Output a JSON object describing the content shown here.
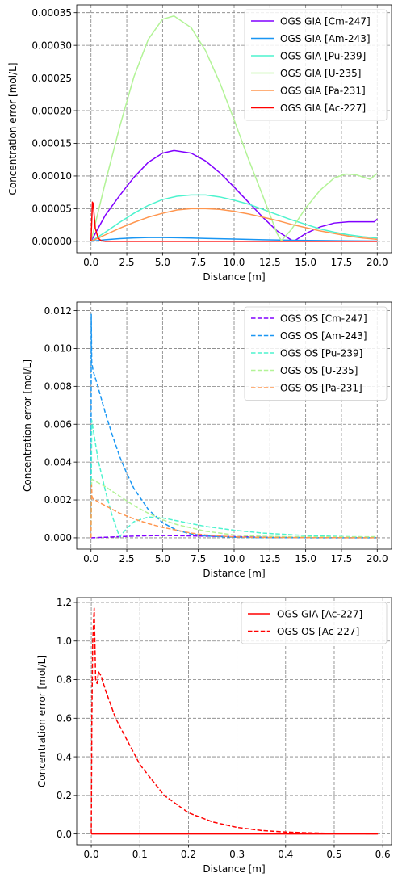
{
  "chart_data": [
    {
      "type": "line",
      "xlabel": "Distance [m]",
      "ylabel": "Concentration error [mol/L]",
      "xlim": [
        -1.0,
        21.0
      ],
      "ylim": [
        -1.75e-05,
        0.000362
      ],
      "xticks": [
        0,
        2.5,
        5,
        7.5,
        10,
        12.5,
        15,
        17.5,
        20
      ],
      "xtick_labels": [
        "0.0",
        "2.5",
        "5.0",
        "7.5",
        "10.0",
        "12.5",
        "15.0",
        "17.5",
        "20.0"
      ],
      "yticks": [
        0,
        5e-05,
        0.0001,
        0.00015,
        0.0002,
        0.00025,
        0.0003,
        0.00035
      ],
      "ytick_labels": [
        "0.00000",
        "0.00005",
        "0.00010",
        "0.00015",
        "0.00020",
        "0.00025",
        "0.00030",
        "0.00035"
      ],
      "grid": true,
      "legend_position": "upper-right",
      "series": [
        {
          "name": "OGS GIA [Cm-247]",
          "color": "#8000ff",
          "style": "solid",
          "x": [
            0,
            1,
            2,
            3,
            4,
            5,
            5.8,
            7,
            8,
            9,
            10,
            11,
            12,
            13,
            14,
            14.2,
            15,
            16,
            17,
            18,
            19,
            19.8,
            20
          ],
          "y": [
            0,
            4e-05,
            7e-05,
            9.8e-05,
            0.000121,
            0.000135,
            0.000139,
            0.000135,
            0.000123,
            0.000105,
            8.3e-05,
            6e-05,
            3.7e-05,
            1.6e-05,
            2e-06,
            5e-07,
            1.2e-05,
            2.2e-05,
            2.8e-05,
            3e-05,
            3e-05,
            3e-05,
            3.4e-05
          ]
        },
        {
          "name": "OGS GIA [Am-243]",
          "color": "#1996f3",
          "style": "solid",
          "x": [
            0,
            1,
            2,
            3,
            4,
            5,
            6,
            7,
            8,
            10,
            12,
            14,
            16,
            18,
            20
          ],
          "y": [
            0,
            2.5e-06,
            4.2e-06,
            5.2e-06,
            5.8e-06,
            5.8e-06,
            5.5e-06,
            5e-06,
            4.5e-06,
            3.5e-06,
            2.5e-06,
            1.7e-06,
            1.2e-06,
            8e-07,
            5e-07
          ]
        },
        {
          "name": "OGS GIA [Pu-239]",
          "color": "#4df3ce",
          "style": "solid",
          "x": [
            0,
            1,
            2,
            3,
            4,
            5,
            6,
            7,
            7.5,
            8,
            9,
            10,
            11,
            12,
            13,
            14,
            15,
            16,
            17,
            18,
            19,
            20
          ],
          "y": [
            0,
            1.4e-05,
            2.9e-05,
            4.3e-05,
            5.5e-05,
            6.4e-05,
            6.9e-05,
            7.1e-05,
            7.1e-05,
            7.1e-05,
            6.8e-05,
            6.3e-05,
            5.7e-05,
            4.9e-05,
            4.1e-05,
            3.3e-05,
            2.6e-05,
            1.9e-05,
            1.4e-05,
            1e-05,
            7e-06,
            5e-06
          ]
        },
        {
          "name": "OGS GIA [U-235]",
          "color": "#b2f396",
          "style": "solid",
          "x": [
            0,
            1,
            2,
            3,
            4,
            5,
            5.8,
            7,
            8,
            9,
            10,
            11,
            12,
            13,
            13.3,
            14,
            15,
            16,
            17,
            17.8,
            18.5,
            19.5,
            20
          ],
          "y": [
            0,
            9e-05,
            0.000175,
            0.000252,
            0.000309,
            0.00034,
            0.000345,
            0.000327,
            0.000292,
            0.000243,
            0.000186,
            0.000126,
            7e-05,
            1.2e-05,
            1e-06,
            1.8e-05,
            5.1e-05,
            7.8e-05,
            9.7e-05,
            0.000103,
            0.000102,
            9.5e-05,
            0.000104
          ]
        },
        {
          "name": "OGS GIA [Pa-231]",
          "color": "#ff964f",
          "style": "solid",
          "x": [
            0,
            1,
            2,
            3,
            4,
            5,
            6,
            7,
            8,
            9,
            10,
            11,
            12,
            13,
            14,
            15,
            16,
            17,
            18,
            19,
            20
          ],
          "y": [
            0,
            1e-05,
            2e-05,
            2.9e-05,
            3.7e-05,
            4.3e-05,
            4.8e-05,
            5e-05,
            5e-05,
            4.9e-05,
            4.6e-05,
            4.2e-05,
            3.7e-05,
            3.2e-05,
            2.6e-05,
            2.1e-05,
            1.6e-05,
            1.2e-05,
            8e-06,
            5e-06,
            3e-06
          ]
        },
        {
          "name": "OGS GIA [Ac-227]",
          "color": "#ff0000",
          "style": "solid",
          "x": [
            0,
            0.1,
            0.15,
            0.3,
            0.5,
            0.7,
            1,
            2,
            5,
            10,
            15,
            20
          ],
          "y": [
            0,
            6e-05,
            5.8e-05,
            2e-05,
            5e-06,
            1e-06,
            0,
            0,
            0,
            0,
            0,
            0
          ]
        }
      ]
    },
    {
      "type": "line",
      "xlabel": "Distance [m]",
      "ylabel": "Concentration error [mol/L]",
      "xlim": [
        -1.0,
        21.0
      ],
      "ylim": [
        -0.0006,
        0.01245
      ],
      "xticks": [
        0,
        2.5,
        5,
        7.5,
        10,
        12.5,
        15,
        17.5,
        20
      ],
      "xtick_labels": [
        "0.0",
        "2.5",
        "5.0",
        "7.5",
        "10.0",
        "12.5",
        "15.0",
        "17.5",
        "20.0"
      ],
      "yticks": [
        0,
        0.002,
        0.004,
        0.006,
        0.008,
        0.01,
        0.012
      ],
      "ytick_labels": [
        "0.000",
        "0.002",
        "0.004",
        "0.006",
        "0.008",
        "0.010",
        "0.012"
      ],
      "grid": true,
      "legend_position": "upper-right",
      "series": [
        {
          "name": "OGS OS [Cm-247]",
          "color": "#8000ff",
          "style": "dashed",
          "x": [
            0,
            1,
            2,
            3,
            4,
            5,
            6,
            7,
            8,
            10,
            12,
            14,
            16,
            18,
            20
          ],
          "y": [
            0,
            3e-05,
            6e-05,
            9e-05,
            0.00011,
            0.00012,
            0.000115,
            0.0001,
            9e-05,
            6e-05,
            4e-05,
            2e-05,
            1e-05,
            1e-05,
            1e-05
          ]
        },
        {
          "name": "OGS OS [Am-243]",
          "color": "#1996f3",
          "style": "dashed",
          "x": [
            0,
            0.02,
            0.05,
            0.15,
            0.4,
            1,
            1.5,
            2,
            2.5,
            3,
            4,
            5,
            6,
            7,
            8,
            10,
            12,
            15,
            20
          ],
          "y": [
            0,
            0.0118,
            0.0093,
            0.0088,
            0.0082,
            0.0066,
            0.0054,
            0.0043,
            0.0034,
            0.0026,
            0.0015,
            0.0008,
            0.0004,
            0.0002,
            0.0001,
            3e-05,
            1e-05,
            5e-06,
            0
          ],
          "markers": [
            {
              "x": 0,
              "y": 0.0118
            }
          ]
        },
        {
          "name": "OGS OS [Pu-239]",
          "color": "#4df3ce",
          "style": "dashed",
          "x": [
            0,
            0.05,
            0.2,
            0.5,
            1,
            1.5,
            2,
            2.5,
            3,
            4,
            5,
            6,
            7,
            8,
            10,
            12,
            15,
            18,
            20
          ],
          "y": [
            0,
            0.0062,
            0.0055,
            0.0041,
            0.0025,
            0.0011,
            5e-05,
            0.0005,
            0.00085,
            0.0011,
            0.00105,
            0.0009,
            0.00075,
            0.0006,
            0.0004,
            0.00025,
            0.00012,
            6e-05,
            4e-05
          ]
        },
        {
          "name": "OGS OS [U-235]",
          "color": "#b2f396",
          "style": "dashed",
          "x": [
            0,
            0.05,
            1,
            2,
            3,
            4,
            5,
            6,
            8,
            10,
            12,
            15,
            18,
            20
          ],
          "y": [
            0,
            0.0031,
            0.0027,
            0.0022,
            0.0017,
            0.0013,
            0.00095,
            0.0007,
            0.00035,
            0.00015,
            8e-05,
            5e-05,
            5e-05,
            6e-05
          ]
        },
        {
          "name": "OGS OS [Pa-231]",
          "color": "#ff964f",
          "style": "dashed",
          "x": [
            0,
            0.03,
            0.08,
            0.5,
            1,
            2,
            3,
            4,
            5,
            6,
            7,
            8,
            10,
            12,
            15,
            20
          ],
          "y": [
            0,
            0.0028,
            0.0021,
            0.0019,
            0.0017,
            0.0013,
            0.001,
            0.00075,
            0.00055,
            0.0004,
            0.00025,
            0.00015,
            5e-05,
            2e-05,
            1e-05,
            0
          ]
        }
      ]
    },
    {
      "type": "line",
      "xlabel": "Distance [m]",
      "ylabel": "Concentration error [mol/L]",
      "xlim": [
        -0.03,
        0.618
      ],
      "ylim": [
        -0.056,
        1.225
      ],
      "xticks": [
        0,
        0.1,
        0.2,
        0.3,
        0.4,
        0.5,
        0.6
      ],
      "xtick_labels": [
        "0.0",
        "0.1",
        "0.2",
        "0.3",
        "0.4",
        "0.5",
        "0.6"
      ],
      "yticks": [
        0,
        0.2,
        0.4,
        0.6,
        0.8,
        1.0,
        1.2
      ],
      "ytick_labels": [
        "0.0",
        "0.2",
        "0.4",
        "0.6",
        "0.8",
        "1.0",
        "1.2"
      ],
      "grid": true,
      "legend_position": "upper-right",
      "series": [
        {
          "name": "OGS GIA [Ac-227]",
          "color": "#ff0000",
          "style": "solid",
          "x": [
            0,
            0.59
          ],
          "y": [
            0,
            0
          ]
        },
        {
          "name": "OGS OS [Ac-227]",
          "color": "#ff0000",
          "style": "dashed",
          "x": [
            0,
            0.0012,
            0.003,
            0.006,
            0.009,
            0.012,
            0.015,
            0.02,
            0.03,
            0.05,
            0.075,
            0.1,
            0.15,
            0.2,
            0.25,
            0.3,
            0.35,
            0.4,
            0.45,
            0.5,
            0.55,
            0.59
          ],
          "y": [
            0,
            0.6,
            1.0,
            1.17,
            0.8,
            0.78,
            0.84,
            0.82,
            0.74,
            0.6,
            0.48,
            0.36,
            0.2,
            0.11,
            0.062,
            0.034,
            0.018,
            0.01,
            0.0055,
            0.003,
            0.0015,
            0.0008
          ]
        }
      ]
    }
  ]
}
